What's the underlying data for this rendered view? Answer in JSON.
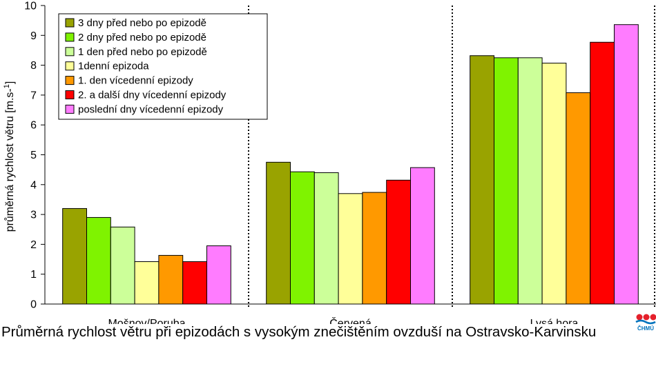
{
  "chart_data": {
    "type": "bar",
    "categories": [
      "Mošnov/Poruba",
      "Červená",
      "Lysá hora"
    ],
    "series": [
      {
        "name": "3 dny před nebo po epizodě",
        "color": "#99a300",
        "values": [
          3.2,
          4.75,
          8.32
        ]
      },
      {
        "name": "2 dny před nebo po epizodě",
        "color": "#7ff300",
        "values": [
          2.9,
          4.43,
          8.25
        ]
      },
      {
        "name": "1 den před nebo po epizodě",
        "color": "#ccff99",
        "values": [
          2.58,
          4.4,
          8.25
        ]
      },
      {
        "name": "1denní epizoda",
        "color": "#ffff99",
        "values": [
          1.42,
          3.7,
          8.07
        ]
      },
      {
        "name": "1. den vícedenní epizody",
        "color": "#ff9900",
        "values": [
          1.63,
          3.74,
          7.08
        ]
      },
      {
        "name": "2. a další dny vícedenní epizody",
        "color": "#ff0000",
        "values": [
          1.42,
          4.15,
          8.77
        ]
      },
      {
        "name": "poslední dny vícedenní epizody",
        "color": "#ff7cff",
        "values": [
          1.95,
          4.57,
          9.36
        ]
      }
    ],
    "ylabel": "průměrná rychlost větru [m.s-1]",
    "ylim": [
      0,
      10
    ],
    "yticks": [
      "0",
      "1",
      "2",
      "3",
      "4",
      "5",
      "6",
      "7",
      "8",
      "9",
      "10"
    ],
    "legend": "top-left",
    "grid": false
  },
  "caption": "Průměrná rychlost větru při epizodách s vysokým znečištěním ovzduší na Ostravsko-Karvinsku",
  "logo": {
    "text": "ČHMÚ",
    "name": "chmu-logo",
    "color": "#e5202b",
    "accent": "#0072bc"
  }
}
